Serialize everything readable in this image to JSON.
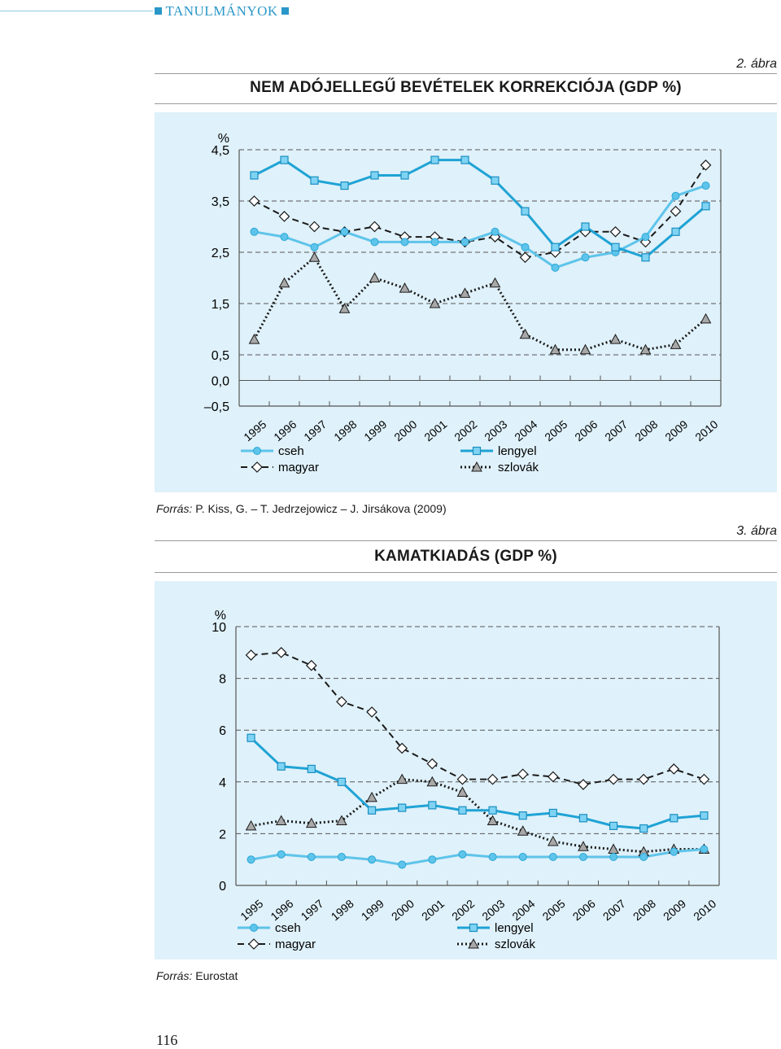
{
  "header": {
    "section": "TANULMÁNYOK"
  },
  "page_number": "116",
  "chart_data": [
    {
      "type": "line",
      "figure_number": "2. ábra",
      "title": "NEM ADÓJELLEGŰ BEVÉTELEK KORREKCIÓJA (GDP %)",
      "ylabel": "%",
      "ylim": [
        -0.5,
        4.5
      ],
      "yticks": [
        -0.5,
        0.0,
        0.5,
        1.5,
        2.5,
        3.5,
        4.5
      ],
      "ytick_labels": [
        "–0,5",
        "0,0",
        "0,5",
        "1,5",
        "2,5",
        "3,5",
        "4,5"
      ],
      "categories": [
        "1995",
        "1996",
        "1997",
        "1998",
        "1999",
        "2000",
        "2001",
        "2002",
        "2003",
        "2004",
        "2005",
        "2006",
        "2007",
        "2008",
        "2009",
        "2010"
      ],
      "series": [
        {
          "name": "cseh",
          "values": [
            2.9,
            2.8,
            2.6,
            2.9,
            2.7,
            2.7,
            2.7,
            2.7,
            2.9,
            2.6,
            2.2,
            2.4,
            2.5,
            2.8,
            3.6,
            3.8
          ]
        },
        {
          "name": "lengyel",
          "values": [
            4.0,
            4.3,
            3.9,
            3.8,
            4.0,
            4.0,
            4.3,
            4.3,
            3.9,
            3.3,
            2.6,
            3.0,
            2.6,
            2.4,
            2.9,
            3.4
          ]
        },
        {
          "name": "magyar",
          "values": [
            3.5,
            3.2,
            3.0,
            2.9,
            3.0,
            2.8,
            2.8,
            2.7,
            2.8,
            2.4,
            2.5,
            2.9,
            2.9,
            2.7,
            3.3,
            4.2
          ]
        },
        {
          "name": "szlovák",
          "values": [
            0.8,
            1.9,
            2.4,
            1.4,
            2.0,
            1.8,
            1.5,
            1.7,
            1.9,
            0.9,
            0.6,
            0.6,
            0.8,
            0.6,
            0.7,
            1.2
          ]
        }
      ],
      "legend": [
        {
          "name": "cseh",
          "style": "solid-light"
        },
        {
          "name": "magyar",
          "style": "dashed"
        },
        {
          "name": "lengyel",
          "style": "solid-dark"
        },
        {
          "name": "szlovák",
          "style": "dotted"
        }
      ],
      "source_label": "Forrás:",
      "source_text": "P. Kiss, G. – T. Jedrzejowicz – J. Jirsákova (2009)",
      "grid": true
    },
    {
      "type": "line",
      "figure_number": "3. ábra",
      "title": "KAMATKIADÁS (GDP %)",
      "ylabel": "%",
      "ylim": [
        0,
        10
      ],
      "yticks": [
        0,
        2,
        4,
        6,
        8,
        10
      ],
      "ytick_labels": [
        "0",
        "2",
        "4",
        "6",
        "8",
        "10"
      ],
      "categories": [
        "1995",
        "1996",
        "1997",
        "1998",
        "1999",
        "2000",
        "2001",
        "2002",
        "2003",
        "2004",
        "2005",
        "2006",
        "2007",
        "2008",
        "2009",
        "2010"
      ],
      "series": [
        {
          "name": "cseh",
          "values": [
            1.0,
            1.2,
            1.1,
            1.1,
            1.0,
            0.8,
            1.0,
            1.2,
            1.1,
            1.1,
            1.1,
            1.1,
            1.1,
            1.1,
            1.3,
            1.4
          ]
        },
        {
          "name": "lengyel",
          "values": [
            5.7,
            4.6,
            4.5,
            4.0,
            2.9,
            3.0,
            3.1,
            2.9,
            2.9,
            2.7,
            2.8,
            2.6,
            2.3,
            2.2,
            2.6,
            2.7
          ]
        },
        {
          "name": "magyar",
          "values": [
            8.9,
            9.0,
            8.5,
            7.1,
            6.7,
            5.3,
            4.7,
            4.1,
            4.1,
            4.3,
            4.2,
            3.9,
            4.1,
            4.1,
            4.5,
            4.1
          ]
        },
        {
          "name": "szlovák",
          "values": [
            2.3,
            2.5,
            2.4,
            2.5,
            3.4,
            4.1,
            4.0,
            3.6,
            2.5,
            2.1,
            1.7,
            1.5,
            1.4,
            1.3,
            1.4,
            1.4
          ]
        }
      ],
      "legend": [
        {
          "name": "cseh",
          "style": "solid-light"
        },
        {
          "name": "magyar",
          "style": "dashed"
        },
        {
          "name": "lengyel",
          "style": "solid-dark"
        },
        {
          "name": "szlovák",
          "style": "dotted"
        }
      ],
      "source_label": "Forrás:",
      "source_text": "Eurostat",
      "grid": true
    }
  ],
  "colors": {
    "cseh": "#5ec4ea",
    "lengyel": "#1fa3d5",
    "magyar": "#1a1a1a",
    "szlovak": "#1a1a1a",
    "panel": "#dff1fa",
    "header": "#2a97c8"
  }
}
